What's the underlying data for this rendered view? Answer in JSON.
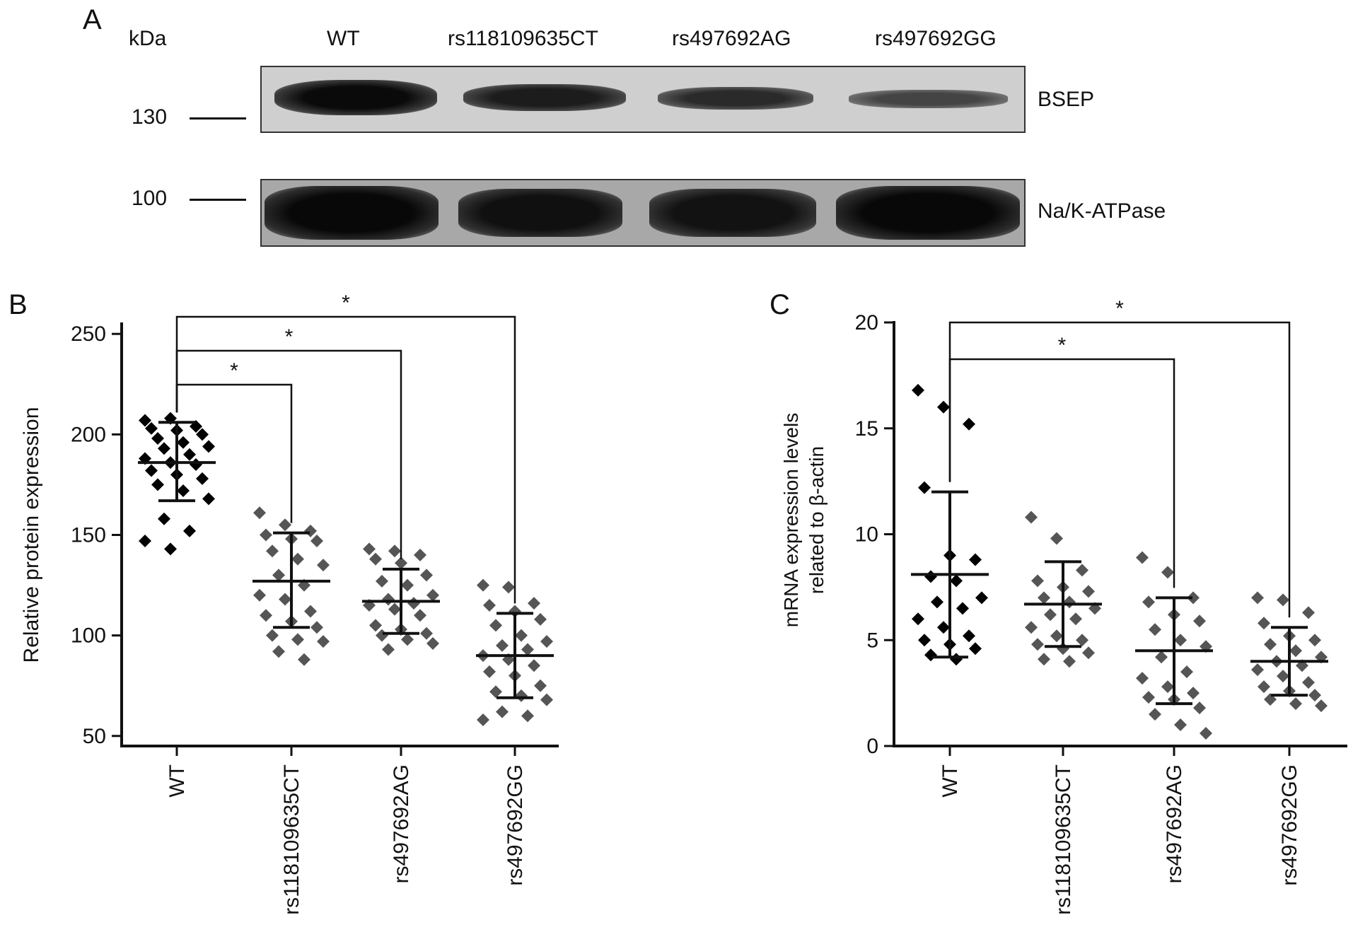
{
  "panel_a": {
    "letter": "A",
    "kda_label": "kDa",
    "lanes": [
      "WT",
      "rs118109635CT",
      "rs497692AG",
      "rs497692GG"
    ],
    "blots": [
      {
        "marker": "130",
        "protein": "BSEP",
        "band_intensity": [
          1.0,
          0.82,
          0.72,
          0.55
        ]
      },
      {
        "marker": "100",
        "protein": "Na/K-ATPase",
        "band_intensity": [
          0.95,
          0.9,
          0.88,
          0.92
        ]
      }
    ]
  },
  "chart_data": [
    {
      "panel": "B",
      "type": "scatter",
      "ylabel": "Relative protein expression",
      "categories": [
        "WT",
        "rs118109635CT",
        "rs497692AG",
        "rs497692GG"
      ],
      "ylim": [
        45,
        255
      ],
      "yticks": [
        50,
        100,
        150,
        200,
        250
      ],
      "mean": [
        186,
        127,
        117,
        90
      ],
      "sd_low": [
        167,
        104,
        101,
        69
      ],
      "sd_high": [
        206,
        151,
        133,
        111
      ],
      "points": [
        [
          207,
          208,
          204,
          203,
          202,
          200,
          198,
          196,
          194,
          193,
          190,
          188,
          186,
          185,
          182,
          180,
          178,
          175,
          172,
          168,
          158,
          152,
          147,
          143
        ],
        [
          161,
          155,
          152,
          150,
          148,
          147,
          142,
          138,
          135,
          130,
          125,
          120,
          118,
          112,
          110,
          107,
          104,
          100,
          98,
          97,
          92,
          88
        ],
        [
          143,
          142,
          140,
          138,
          136,
          130,
          127,
          125,
          120,
          118,
          116,
          115,
          113,
          110,
          105,
          103,
          101,
          100,
          98,
          96,
          93
        ],
        [
          125,
          124,
          116,
          115,
          112,
          108,
          105,
          100,
          97,
          95,
          93,
          90,
          88,
          85,
          82,
          80,
          75,
          72,
          70,
          68,
          62,
          60,
          58
        ]
      ],
      "significance": [
        {
          "from": "WT",
          "to": "rs118109635CT",
          "label": "*"
        },
        {
          "from": "WT",
          "to": "rs497692AG",
          "label": "*"
        },
        {
          "from": "WT",
          "to": "rs497692GG",
          "label": "*"
        }
      ],
      "point_colors": [
        "#000000",
        "#555555",
        "#555555",
        "#555555"
      ]
    },
    {
      "panel": "C",
      "type": "scatter",
      "ylabel_line1": "mRNA expression levels",
      "ylabel_line2": "related to β-actin",
      "categories": [
        "WT",
        "rs118109635CT",
        "rs497692AG",
        "rs497692GG"
      ],
      "ylim": [
        0,
        20
      ],
      "yticks": [
        0,
        5,
        10,
        15,
        20
      ],
      "mean": [
        8.1,
        6.7,
        4.5,
        4.0
      ],
      "sd_low": [
        4.2,
        4.7,
        2.0,
        2.4
      ],
      "sd_high": [
        12.0,
        8.7,
        7.0,
        5.6
      ],
      "points": [
        [
          16.8,
          16.0,
          15.2,
          12.2,
          9.0,
          8.8,
          8.0,
          7.8,
          7.0,
          6.8,
          6.5,
          6.0,
          5.6,
          5.2,
          5.0,
          4.8,
          4.6,
          4.3,
          4.1
        ],
        [
          10.8,
          9.8,
          8.3,
          7.8,
          7.5,
          7.3,
          7.0,
          6.8,
          6.5,
          6.2,
          6.0,
          5.6,
          5.2,
          5.0,
          4.8,
          4.6,
          4.4,
          4.1,
          4.0
        ],
        [
          8.9,
          8.2,
          7.0,
          6.8,
          6.2,
          5.9,
          5.5,
          5.0,
          4.7,
          4.2,
          3.5,
          3.2,
          2.8,
          2.5,
          2.3,
          2.2,
          1.8,
          1.5,
          1.0,
          0.6
        ],
        [
          7.0,
          6.9,
          6.3,
          5.8,
          5.2,
          5.0,
          4.8,
          4.5,
          4.2,
          4.0,
          3.8,
          3.6,
          3.3,
          3.0,
          2.8,
          2.6,
          2.4,
          2.2,
          2.0,
          1.9
        ]
      ],
      "significance": [
        {
          "from": "WT",
          "to": "rs497692AG",
          "label": "*"
        },
        {
          "from": "WT",
          "to": "rs497692GG",
          "label": "*"
        }
      ],
      "point_colors": [
        "#000000",
        "#555555",
        "#555555",
        "#555555"
      ]
    }
  ]
}
